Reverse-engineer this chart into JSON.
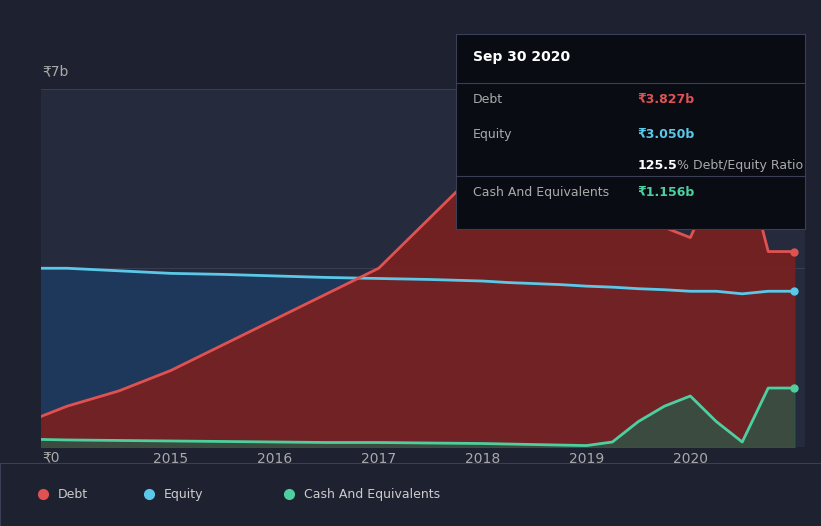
{
  "background_color": "#1e2130",
  "plot_bg_color": "#252a3d",
  "y_label_top": "₹7b",
  "y_label_bottom": "₹0",
  "grid_color": "#3a3f55",
  "years": [
    2013.75,
    2014.0,
    2014.5,
    2015.0,
    2015.5,
    2016.0,
    2016.5,
    2017.0,
    2017.5,
    2018.0,
    2018.25,
    2018.5,
    2018.75,
    2019.0,
    2019.25,
    2019.5,
    2019.75,
    2020.0,
    2020.25,
    2020.5,
    2020.75,
    2021.0
  ],
  "debt": [
    0.6,
    0.8,
    1.1,
    1.5,
    2.0,
    2.5,
    3.0,
    3.5,
    4.5,
    5.5,
    5.7,
    5.6,
    5.5,
    5.3,
    4.8,
    4.5,
    4.3,
    4.1,
    5.2,
    5.8,
    3.827,
    3.827
  ],
  "equity": [
    3.5,
    3.5,
    3.45,
    3.4,
    3.38,
    3.35,
    3.32,
    3.3,
    3.28,
    3.25,
    3.22,
    3.2,
    3.18,
    3.15,
    3.13,
    3.1,
    3.08,
    3.05,
    3.05,
    3.0,
    3.05,
    3.05
  ],
  "cash": [
    0.15,
    0.14,
    0.13,
    0.12,
    0.11,
    0.1,
    0.09,
    0.09,
    0.08,
    0.07,
    0.06,
    0.05,
    0.04,
    0.03,
    0.1,
    0.5,
    0.8,
    1.0,
    0.5,
    0.1,
    1.156,
    1.156
  ],
  "debt_color": "#e05252",
  "equity_color": "#5bc8e8",
  "cash_color": "#4ecfa0",
  "debt_fill_color": "#7a2020",
  "equity_fill_color": "#1e3a5f",
  "cash_fill_color": "#2a5a48",
  "xlim": [
    2013.75,
    2021.1
  ],
  "ylim": [
    0,
    7
  ],
  "xtick_years": [
    2015,
    2016,
    2017,
    2018,
    2019,
    2020
  ],
  "tooltip": {
    "title": "Sep 30 2020",
    "debt_label": "Debt",
    "debt_value": "₹3.827b",
    "equity_label": "Equity",
    "equity_value": "₹3.050b",
    "ratio_text": "125.5% Debt/Equity Ratio",
    "cash_label": "Cash And Equivalents",
    "cash_value": "₹1.156b",
    "bg_color": "#0a0c14",
    "border_color": "#3a3f55",
    "text_color": "#aaaaaa",
    "title_color": "#ffffff",
    "debt_value_color": "#e05252",
    "equity_value_color": "#5bc8e8",
    "cash_value_color": "#4ecfa0",
    "ratio_bold_color": "#ffffff"
  },
  "legend": [
    {
      "label": "Debt",
      "color": "#e05252"
    },
    {
      "label": "Equity",
      "color": "#5bc8e8"
    },
    {
      "label": "Cash And Equivalents",
      "color": "#4ecfa0"
    }
  ]
}
